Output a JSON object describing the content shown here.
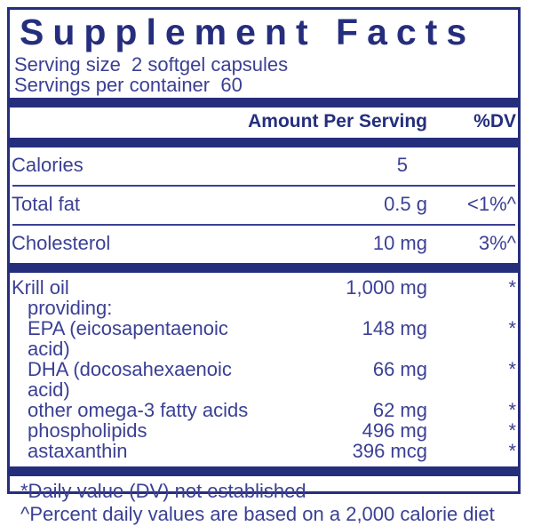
{
  "colors": {
    "navy": "#252e7d",
    "ink": "#3b4094"
  },
  "header": {
    "title": "Supplement Facts"
  },
  "serving": {
    "size_line": "Serving size  2 softgel capsules",
    "container_line": "Servings per container  60"
  },
  "columns": {
    "amount": "Amount Per Serving",
    "dv": "%DV"
  },
  "main_rows": [
    {
      "name": "Calories",
      "amount": "5",
      "dv": ""
    },
    {
      "name": "Total fat",
      "amount": "0.5 g",
      "dv": "<1%^"
    },
    {
      "name": "Cholesterol",
      "amount": "10 mg",
      "dv": "3%^"
    }
  ],
  "krill": {
    "name": "Krill oil",
    "amount": "1,000 mg",
    "dv": "*",
    "providing": "providing:",
    "items": [
      {
        "name": "EPA (eicosapentaenoic acid)",
        "amount": "148 mg",
        "dv": "*"
      },
      {
        "name": "DHA (docosahexaenoic acid)",
        "amount": "66 mg",
        "dv": "*"
      },
      {
        "name": "other omega-3 fatty acids",
        "amount": "62 mg",
        "dv": "*"
      },
      {
        "name": "phospholipids",
        "amount": "496 mg",
        "dv": "*"
      },
      {
        "name": "astaxanthin",
        "amount": "396 mcg",
        "dv": "*"
      }
    ]
  },
  "footnotes": [
    "*Daily value (DV) not established",
    "^Percent daily values are based on a 2,000 calorie diet"
  ]
}
